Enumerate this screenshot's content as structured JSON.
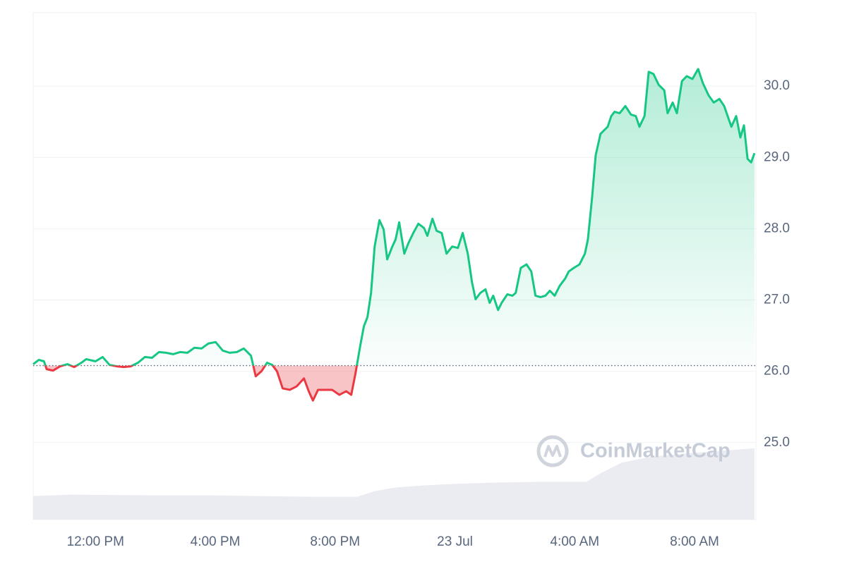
{
  "chart_data": {
    "type": "line",
    "x": [
      -2.08,
      -1.89,
      -1.72,
      -1.63,
      -1.42,
      -1.18,
      -0.94,
      -0.71,
      -0.47,
      -0.31,
      0,
      0.24,
      0.47,
      0.71,
      0.94,
      1.18,
      1.42,
      1.65,
      1.89,
      2.12,
      2.36,
      2.59,
      2.83,
      3.07,
      3.3,
      3.54,
      3.77,
      4.01,
      4.25,
      4.48,
      4.72,
      4.95,
      5.19,
      5.35,
      5.54,
      5.73,
      5.9,
      6.06,
      6.25,
      6.49,
      6.72,
      6.96,
      7.12,
      7.26,
      7.43,
      7.67,
      7.9,
      8.14,
      8.37,
      8.54,
      8.68,
      8.84,
      8.96,
      9.08,
      9.2,
      9.32,
      9.48,
      9.62,
      9.74,
      9.91,
      10.02,
      10.14,
      10.31,
      10.45,
      10.61,
      10.78,
      10.97,
      11.08,
      11.25,
      11.39,
      11.56,
      11.72,
      11.91,
      12.1,
      12.26,
      12.43,
      12.57,
      12.69,
      12.85,
      13.02,
      13.16,
      13.28,
      13.44,
      13.56,
      13.75,
      13.92,
      14.03,
      14.2,
      14.39,
      14.55,
      14.69,
      14.86,
      15.02,
      15.17,
      15.33,
      15.5,
      15.68,
      15.8,
      15.97,
      16.16,
      16.34,
      16.44,
      16.58,
      16.7,
      16.86,
      16.98,
      17.1,
      17.22,
      17.33,
      17.5,
      17.69,
      17.88,
      18.04,
      18.16,
      18.33,
      18.47,
      18.63,
      18.8,
      18.99,
      19.1,
      19.27,
      19.41,
      19.58,
      19.74,
      19.93,
      20.12,
      20.28,
      20.47,
      20.64,
      20.83,
      20.99,
      21.23,
      21.39,
      21.53,
      21.65,
      21.77,
      21.89,
      22.0
    ],
    "values": [
      26.1,
      26.16,
      26.14,
      26.03,
      26.01,
      26.07,
      26.1,
      26.06,
      26.12,
      26.17,
      26.14,
      26.2,
      26.09,
      26.07,
      26.06,
      26.07,
      26.12,
      26.2,
      26.19,
      26.27,
      26.26,
      26.24,
      26.27,
      26.26,
      26.33,
      26.32,
      26.39,
      26.41,
      26.29,
      26.26,
      26.27,
      26.32,
      26.22,
      25.93,
      26.0,
      26.12,
      26.09,
      26.0,
      25.76,
      25.74,
      25.79,
      25.9,
      25.72,
      25.59,
      25.74,
      25.74,
      25.74,
      25.67,
      25.72,
      25.67,
      25.97,
      26.36,
      26.63,
      26.76,
      27.1,
      27.75,
      28.12,
      27.99,
      27.57,
      27.75,
      27.85,
      28.09,
      27.65,
      27.8,
      27.94,
      28.07,
      28.01,
      27.9,
      28.14,
      27.97,
      27.94,
      27.65,
      27.75,
      27.73,
      27.94,
      27.65,
      27.25,
      27.01,
      27.1,
      27.15,
      26.96,
      27.06,
      26.86,
      26.96,
      27.08,
      27.06,
      27.1,
      27.45,
      27.5,
      27.4,
      27.06,
      27.04,
      27.06,
      27.13,
      27.06,
      27.2,
      27.3,
      27.4,
      27.45,
      27.5,
      27.65,
      27.85,
      28.44,
      29.03,
      29.33,
      29.38,
      29.43,
      29.58,
      29.64,
      29.62,
      29.72,
      29.6,
      29.58,
      29.43,
      29.58,
      30.2,
      30.17,
      30.02,
      29.94,
      29.62,
      29.77,
      29.62,
      30.07,
      30.14,
      30.1,
      30.24,
      30.04,
      29.87,
      29.77,
      29.82,
      29.72,
      29.43,
      29.58,
      29.28,
      29.45,
      28.98,
      28.93,
      29.06
    ],
    "baseline": 26.08,
    "up_color": "#16c784",
    "down_color": "#ea3943",
    "xlim": [
      -2.08,
      22.05
    ],
    "xticks": [
      {
        "value": 0,
        "label": "12:00 PM"
      },
      {
        "value": 4,
        "label": "4:00 PM"
      },
      {
        "value": 8,
        "label": "8:00 PM"
      },
      {
        "value": 12,
        "label": "23 Jul"
      },
      {
        "value": 16,
        "label": "4:00 AM"
      },
      {
        "value": 20,
        "label": "8:00 AM"
      }
    ],
    "ylim": [
      23.92,
      31.03
    ],
    "yticks": [
      {
        "value": 25,
        "label": "25.0"
      },
      {
        "value": 26,
        "label": "26.0"
      },
      {
        "value": 27,
        "label": "27.0"
      },
      {
        "value": 28,
        "label": "28.0"
      },
      {
        "value": 29,
        "label": "29.0"
      },
      {
        "value": 30,
        "label": "30.0"
      }
    ],
    "grid": true,
    "volume": {
      "x": [
        -2.08,
        -0.83,
        2.0,
        3.89,
        7.19,
        8.73,
        9.32,
        10.02,
        10.97,
        11.91,
        13.33,
        14.74,
        16.39,
        16.86,
        17.57,
        18.51,
        19.46,
        20.4,
        21.34,
        22.0
      ],
      "values": [
        33,
        35,
        34,
        34,
        32,
        32,
        40,
        45,
        48,
        50,
        52,
        53,
        53,
        65,
        80,
        88,
        92,
        95,
        98,
        100
      ],
      "ylim": [
        0,
        100
      ],
      "color": "#e6e9ef"
    },
    "watermark": "CoinMarketCap"
  }
}
